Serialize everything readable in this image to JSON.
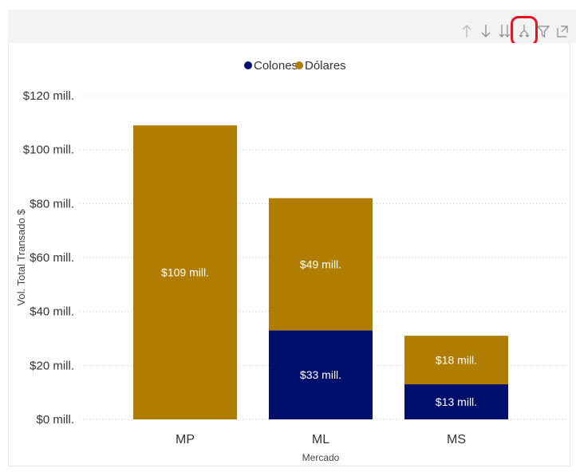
{
  "header": {
    "cut_text": "",
    "icons": [
      {
        "name": "drill-up-icon",
        "selected": false
      },
      {
        "name": "drill-down-icon",
        "selected": false
      },
      {
        "name": "expand-next-level-icon",
        "selected": false
      },
      {
        "name": "expand-hierarchy-icon",
        "selected": true
      },
      {
        "name": "filter-icon",
        "selected": false
      },
      {
        "name": "focus-mode-icon",
        "selected": false
      }
    ]
  },
  "colors": {
    "colones": "#000f6b",
    "dolares": "#b07d00",
    "highlight": "#e81123"
  },
  "chart_data": {
    "type": "bar",
    "stacked": true,
    "categories": [
      "MP",
      "ML",
      "MS"
    ],
    "series": [
      {
        "name": "Colones",
        "color": "#000f6b",
        "values": [
          0,
          33,
          13
        ],
        "labels": [
          "",
          "$33 mill.",
          "$13 mill."
        ]
      },
      {
        "name": "Dólares",
        "color": "#b07d00",
        "values": [
          109,
          49,
          18
        ],
        "labels": [
          "$109 mill.",
          "$49 mill.",
          "$18 mill."
        ]
      }
    ],
    "xlabel": "Mercado",
    "ylabel": "Vol. Total Transado $",
    "ylim": [
      0,
      120
    ],
    "yticks": [
      0,
      20,
      40,
      60,
      80,
      100,
      120
    ],
    "ytick_labels": [
      "$0 mill.",
      "$20 mill.",
      "$40 mill.",
      "$60 mill.",
      "$80 mill.",
      "$100 mill.",
      "$120 mill."
    ],
    "legend_position": "top-center",
    "grid": true
  }
}
